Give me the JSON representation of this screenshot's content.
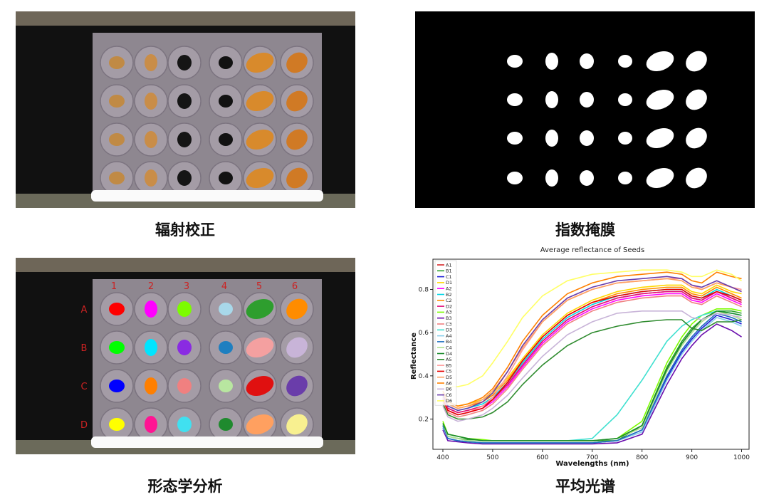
{
  "captions": {
    "radiometric": "辐射校正",
    "mask": "指数掩膜",
    "morphology": "形态学分析",
    "spectrum": "平均光谱"
  },
  "grid_labels": {
    "columns": [
      "1",
      "2",
      "3",
      "4",
      "5",
      "6"
    ],
    "rows": [
      "A",
      "B",
      "C",
      "D"
    ]
  },
  "seed_types": [
    "light-brown soybean",
    "light-brown soybean",
    "black bean",
    "black bean",
    "maize kernel",
    "maize kernel"
  ],
  "seed_colors": {
    "A": [
      "#ff0000",
      "#ff00ff",
      "#7cfc00",
      "#a8d8ea",
      "#2e9e2e",
      "#ff8c00"
    ],
    "B": [
      "#00ff00",
      "#00e5ff",
      "#8a2be2",
      "#1e7fc0",
      "#f4a0a0",
      "#c8b4d8"
    ],
    "C": [
      "#0000ff",
      "#ff7f00",
      "#f08080",
      "#b8e6a0",
      "#e01010",
      "#6a3daa"
    ],
    "D": [
      "#ffff00",
      "#ff1493",
      "#40e0f0",
      "#1f8a2e",
      "#ffa060",
      "#f8f090"
    ]
  },
  "chart_data": {
    "type": "line",
    "title": "Average reflectance of Seeds",
    "xlabel": "Wavelengths (nm)",
    "ylabel": "Reflectance",
    "xlim": [
      380,
      1015
    ],
    "ylim": [
      0.06,
      0.94
    ],
    "xticks": [
      400,
      500,
      600,
      700,
      800,
      900,
      1000
    ],
    "yticks": [
      0.2,
      0.4,
      0.6,
      0.8
    ],
    "legend_position": "top-left",
    "x": [
      400,
      410,
      430,
      450,
      480,
      500,
      530,
      560,
      600,
      650,
      700,
      750,
      800,
      850,
      880,
      900,
      920,
      950,
      980,
      1000
    ],
    "series": [
      {
        "name": "A1",
        "color": "#d62728",
        "values": [
          0.3,
          0.25,
          0.23,
          0.24,
          0.26,
          0.29,
          0.36,
          0.45,
          0.56,
          0.66,
          0.72,
          0.76,
          0.78,
          0.79,
          0.79,
          0.76,
          0.75,
          0.79,
          0.76,
          0.74
        ]
      },
      {
        "name": "B1",
        "color": "#2ca02c",
        "values": [
          0.17,
          0.12,
          0.11,
          0.105,
          0.1,
          0.1,
          0.1,
          0.1,
          0.1,
          0.1,
          0.1,
          0.1,
          0.17,
          0.44,
          0.56,
          0.62,
          0.66,
          0.7,
          0.7,
          0.69
        ]
      },
      {
        "name": "C1",
        "color": "#1f1fd6",
        "values": [
          0.16,
          0.11,
          0.1,
          0.095,
          0.09,
          0.09,
          0.09,
          0.09,
          0.09,
          0.09,
          0.09,
          0.1,
          0.15,
          0.39,
          0.51,
          0.57,
          0.62,
          0.68,
          0.66,
          0.64
        ]
      },
      {
        "name": "D1",
        "color": "#ffd700",
        "values": [
          0.33,
          0.28,
          0.26,
          0.27,
          0.29,
          0.32,
          0.39,
          0.48,
          0.59,
          0.69,
          0.75,
          0.79,
          0.81,
          0.82,
          0.82,
          0.79,
          0.78,
          0.82,
          0.79,
          0.78
        ]
      },
      {
        "name": "A2",
        "color": "#ff00ff",
        "values": [
          0.29,
          0.24,
          0.22,
          0.23,
          0.25,
          0.28,
          0.35,
          0.44,
          0.55,
          0.65,
          0.71,
          0.75,
          0.77,
          0.78,
          0.78,
          0.75,
          0.74,
          0.78,
          0.75,
          0.73
        ]
      },
      {
        "name": "B2",
        "color": "#00d5e5",
        "values": [
          0.31,
          0.26,
          0.24,
          0.25,
          0.27,
          0.3,
          0.37,
          0.46,
          0.57,
          0.67,
          0.73,
          0.77,
          0.79,
          0.8,
          0.8,
          0.77,
          0.76,
          0.8,
          0.77,
          0.75
        ]
      },
      {
        "name": "C2",
        "color": "#ff8c00",
        "values": [
          0.32,
          0.27,
          0.25,
          0.26,
          0.28,
          0.31,
          0.38,
          0.47,
          0.58,
          0.68,
          0.74,
          0.78,
          0.8,
          0.81,
          0.81,
          0.78,
          0.77,
          0.81,
          0.78,
          0.76
        ]
      },
      {
        "name": "D2",
        "color": "#e0107a",
        "values": [
          0.3,
          0.25,
          0.23,
          0.24,
          0.26,
          0.29,
          0.36,
          0.45,
          0.56,
          0.66,
          0.72,
          0.76,
          0.78,
          0.79,
          0.79,
          0.76,
          0.75,
          0.79,
          0.76,
          0.74
        ]
      },
      {
        "name": "A3",
        "color": "#7cfc00",
        "values": [
          0.19,
          0.13,
          0.12,
          0.11,
          0.105,
          0.1,
          0.1,
          0.1,
          0.1,
          0.1,
          0.1,
          0.11,
          0.19,
          0.46,
          0.58,
          0.64,
          0.68,
          0.71,
          0.71,
          0.7
        ]
      },
      {
        "name": "B3",
        "color": "#6a0dad",
        "values": [
          0.15,
          0.1,
          0.095,
          0.09,
          0.085,
          0.085,
          0.085,
          0.085,
          0.085,
          0.085,
          0.085,
          0.09,
          0.13,
          0.36,
          0.48,
          0.54,
          0.59,
          0.64,
          0.61,
          0.58
        ]
      },
      {
        "name": "C3",
        "color": "#f08080",
        "values": [
          0.28,
          0.23,
          0.21,
          0.22,
          0.24,
          0.27,
          0.34,
          0.43,
          0.54,
          0.64,
          0.7,
          0.74,
          0.76,
          0.77,
          0.77,
          0.74,
          0.73,
          0.77,
          0.74,
          0.72
        ]
      },
      {
        "name": "D3",
        "color": "#40e0d0",
        "values": [
          0.17,
          0.12,
          0.11,
          0.1,
          0.1,
          0.1,
          0.1,
          0.1,
          0.1,
          0.1,
          0.11,
          0.22,
          0.38,
          0.56,
          0.63,
          0.66,
          0.68,
          0.7,
          0.69,
          0.68
        ]
      },
      {
        "name": "A4",
        "color": "#87ceeb",
        "values": [
          0.16,
          0.11,
          0.1,
          0.095,
          0.09,
          0.09,
          0.09,
          0.09,
          0.09,
          0.09,
          0.09,
          0.1,
          0.14,
          0.38,
          0.5,
          0.56,
          0.61,
          0.67,
          0.65,
          0.63
        ]
      },
      {
        "name": "B4",
        "color": "#1e6fbf",
        "values": [
          0.17,
          0.11,
          0.1,
          0.095,
          0.09,
          0.09,
          0.09,
          0.09,
          0.09,
          0.09,
          0.09,
          0.1,
          0.15,
          0.4,
          0.52,
          0.58,
          0.63,
          0.69,
          0.67,
          0.65
        ]
      },
      {
        "name": "C4",
        "color": "#b0e090",
        "values": [
          0.18,
          0.12,
          0.11,
          0.1,
          0.1,
          0.1,
          0.1,
          0.1,
          0.1,
          0.1,
          0.1,
          0.11,
          0.16,
          0.42,
          0.54,
          0.6,
          0.65,
          0.7,
          0.68,
          0.66
        ]
      },
      {
        "name": "D4",
        "color": "#1a8a2a",
        "values": [
          0.18,
          0.13,
          0.12,
          0.11,
          0.1,
          0.1,
          0.1,
          0.1,
          0.1,
          0.1,
          0.1,
          0.11,
          0.17,
          0.43,
          0.55,
          0.61,
          0.66,
          0.7,
          0.69,
          0.68
        ]
      },
      {
        "name": "A5",
        "color": "#2e8b2e",
        "values": [
          0.27,
          0.22,
          0.2,
          0.2,
          0.21,
          0.23,
          0.28,
          0.36,
          0.45,
          0.54,
          0.6,
          0.63,
          0.65,
          0.66,
          0.66,
          0.62,
          0.61,
          0.65,
          0.65,
          0.66
        ]
      },
      {
        "name": "B5",
        "color": "#ff9999",
        "values": [
          0.3,
          0.24,
          0.22,
          0.23,
          0.26,
          0.3,
          0.4,
          0.52,
          0.65,
          0.75,
          0.8,
          0.83,
          0.84,
          0.85,
          0.85,
          0.82,
          0.8,
          0.83,
          0.81,
          0.8
        ]
      },
      {
        "name": "C5",
        "color": "#e60000",
        "values": [
          0.29,
          0.24,
          0.22,
          0.23,
          0.25,
          0.29,
          0.37,
          0.47,
          0.58,
          0.68,
          0.74,
          0.77,
          0.79,
          0.8,
          0.8,
          0.77,
          0.76,
          0.79,
          0.77,
          0.75
        ]
      },
      {
        "name": "D5",
        "color": "#ffa060",
        "values": [
          0.32,
          0.27,
          0.25,
          0.26,
          0.29,
          0.33,
          0.42,
          0.53,
          0.65,
          0.75,
          0.8,
          0.83,
          0.84,
          0.85,
          0.84,
          0.81,
          0.8,
          0.83,
          0.81,
          0.79
        ]
      },
      {
        "name": "A6",
        "color": "#ff8000",
        "values": [
          0.33,
          0.28,
          0.26,
          0.27,
          0.3,
          0.34,
          0.44,
          0.56,
          0.68,
          0.78,
          0.83,
          0.86,
          0.87,
          0.88,
          0.87,
          0.84,
          0.83,
          0.88,
          0.86,
          0.85
        ]
      },
      {
        "name": "B6",
        "color": "#c8b4d8",
        "values": [
          0.26,
          0.21,
          0.19,
          0.2,
          0.22,
          0.25,
          0.31,
          0.39,
          0.49,
          0.59,
          0.65,
          0.69,
          0.7,
          0.7,
          0.7,
          0.67,
          0.66,
          0.69,
          0.68,
          0.67
        ]
      },
      {
        "name": "C6",
        "color": "#6a3daa",
        "values": [
          0.31,
          0.26,
          0.24,
          0.25,
          0.28,
          0.32,
          0.42,
          0.54,
          0.66,
          0.76,
          0.81,
          0.84,
          0.85,
          0.86,
          0.85,
          0.82,
          0.81,
          0.84,
          0.81,
          0.79
        ]
      },
      {
        "name": "D6",
        "color": "#ffff66",
        "values": [
          0.36,
          0.35,
          0.35,
          0.36,
          0.4,
          0.46,
          0.56,
          0.67,
          0.77,
          0.84,
          0.87,
          0.88,
          0.89,
          0.89,
          0.88,
          0.86,
          0.86,
          0.89,
          0.87,
          0.84
        ]
      }
    ]
  }
}
